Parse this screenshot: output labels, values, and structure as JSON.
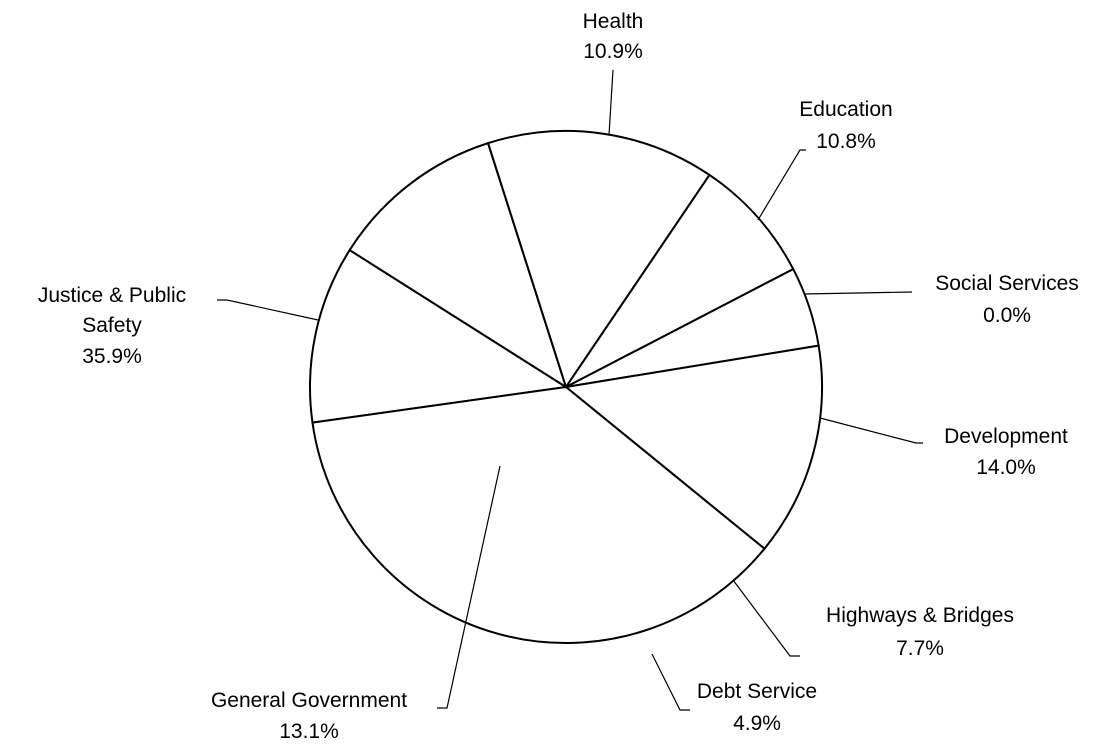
{
  "chart_data": {
    "type": "pie",
    "title": "",
    "slices": [
      {
        "label": "Health",
        "percent_label": "10.9%",
        "value": 10.9
      },
      {
        "label": "Education",
        "percent_label": "10.8%",
        "value": 10.8
      },
      {
        "label": "Social Services",
        "percent_label": "0.0%",
        "value": 0.0
      },
      {
        "label": "Development",
        "percent_label": "14.0%",
        "value": 14.0
      },
      {
        "label": "Highways & Bridges",
        "percent_label": "7.7%",
        "value": 7.7
      },
      {
        "label": "Debt Service",
        "percent_label": "4.9%",
        "value": 4.9
      },
      {
        "label": "General Government",
        "percent_label": "13.1%",
        "value": 13.1
      },
      {
        "label": "Justice & Public Safety",
        "percent_label": "35.9%",
        "value": 35.9
      }
    ],
    "colors": {
      "fill": "#ffffff",
      "stroke": "#000000"
    },
    "legend": "none"
  }
}
